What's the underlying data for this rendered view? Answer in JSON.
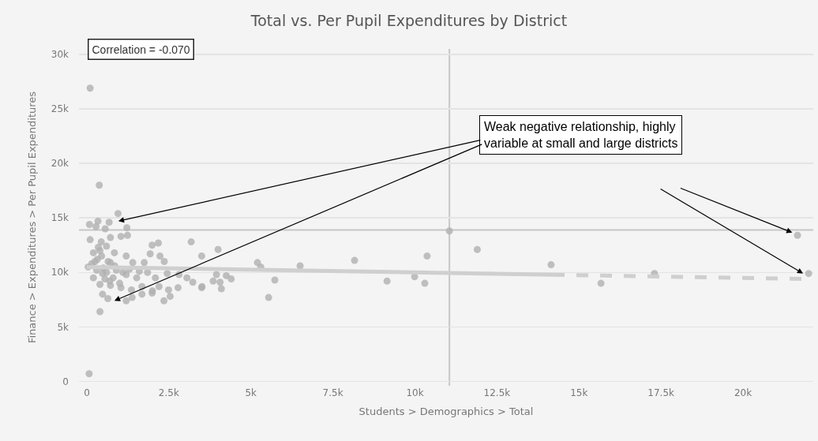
{
  "chart_data": {
    "type": "scatter",
    "title": "Total vs. Per Pupil Expenditures by District",
    "xlabel": "Students > Demographics > Total",
    "ylabel": "Finance > Expenditures > Per Pupil Expenditures",
    "xlim": [
      -240,
      22140
    ],
    "ylim": [
      -400,
      30500
    ],
    "xticks": [
      0,
      {
        "value": 2500,
        "label": "2.5k"
      },
      {
        "value": 5000,
        "label": "5k"
      },
      {
        "value": 7500,
        "label": "7.5k"
      },
      {
        "value": 10000,
        "label": "10k"
      },
      {
        "value": 12500,
        "label": "12.5k"
      },
      {
        "value": 15000,
        "label": "15k"
      },
      {
        "value": 17500,
        "label": "17.5k"
      },
      {
        "value": 20000,
        "label": "20k"
      }
    ],
    "yticks": [
      0,
      {
        "value": 5000,
        "label": "5k"
      },
      {
        "value": 10000,
        "label": "10k"
      },
      {
        "value": 15000,
        "label": "15k"
      },
      {
        "value": 20000,
        "label": "20k"
      },
      {
        "value": 25000,
        "label": "25k"
      },
      {
        "value": 30000,
        "label": "30k"
      }
    ],
    "grid": "y",
    "marker": "circle",
    "ref_lines": [
      {
        "axis": "y",
        "value": 13900,
        "color": "#c6c6c6"
      },
      {
        "axis": "x",
        "value": 11050,
        "color": "#c6c6c6"
      }
    ],
    "annotations": [
      "Correlation = -0.070",
      "Weak negative relationship, highly variable at small and large districts"
    ],
    "series": [
      {
        "color": "#b0b0b0",
        "x": [
          100,
          380,
          950,
          680,
          340,
          80,
          280,
          560,
          1220,
          1240,
          1040,
          100,
          720,
          440,
          1990,
          2180,
          3180,
          200,
          400,
          840,
          1930,
          2230,
          2360,
          320,
          1200,
          40,
          720,
          1400,
          1750,
          200,
          480,
          800,
          1200,
          1520,
          1850,
          2090,
          2450,
          2810,
          3050,
          400,
          720,
          1040,
          1360,
          1680,
          2000,
          2200,
          2490,
          2780,
          3230,
          3510,
          480,
          640,
          1200,
          1380,
          1680,
          1990,
          2350,
          2540,
          400,
          70,
          300,
          500,
          600,
          900,
          250,
          450,
          600,
          350,
          700,
          1000,
          550,
          1300,
          1600,
          150,
          850,
          1100,
          650,
          3500,
          3500,
          3850,
          3950,
          4000,
          4060,
          4100,
          4250,
          4400,
          5200,
          5300,
          5540,
          5730,
          6500,
          8160,
          9150,
          9990,
          10300,
          10370,
          11050,
          11900,
          14150,
          15670,
          17300,
          21660,
          22000
        ],
        "values": [
          26900,
          18000,
          15400,
          14600,
          14700,
          14400,
          14200,
          14000,
          14100,
          13400,
          13300,
          13000,
          13200,
          12800,
          12500,
          12700,
          12800,
          11800,
          12000,
          11800,
          11700,
          11500,
          11000,
          11200,
          11500,
          10500,
          10900,
          10900,
          10900,
          9500,
          9900,
          9500,
          9800,
          9500,
          10000,
          9500,
          9900,
          9800,
          9500,
          8900,
          8800,
          8600,
          8400,
          8700,
          8300,
          8700,
          8400,
          8600,
          9100,
          8700,
          8000,
          7600,
          7400,
          7700,
          8000,
          8100,
          7400,
          7800,
          6400,
          700,
          10200,
          10400,
          10000,
          10200,
          11000,
          11500,
          12400,
          12300,
          9200,
          9000,
          9400,
          10300,
          10100,
          10800,
          10600,
          10000,
          11000,
          11500,
          8600,
          9200,
          9800,
          12100,
          9100,
          8500,
          9700,
          9400,
          10900,
          10500,
          7700,
          9300,
          10600,
          11100,
          9200,
          9600,
          9000,
          11500,
          13800,
          12100,
          10700,
          9000,
          9900,
          13400,
          9900
        ]
      },
      {
        "type": "line",
        "color": "#cfcfcf",
        "line_style": "solid",
        "marker": "none",
        "x": [
          0,
          14200
        ],
        "values": [
          10500,
          9790
        ]
      },
      {
        "type": "line",
        "color": "#cfcfcf",
        "line_style": "dashed",
        "marker": "none",
        "x": [
          14200,
          22000
        ],
        "values": [
          9790,
          9400
        ]
      }
    ]
  }
}
